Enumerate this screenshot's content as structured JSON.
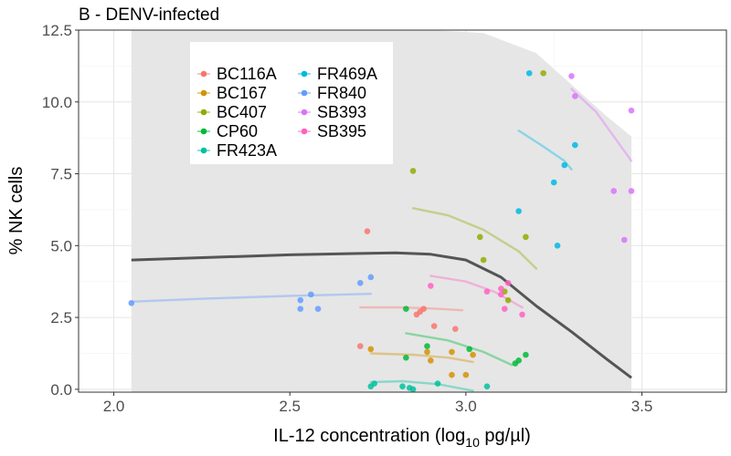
{
  "chart_data": {
    "type": "scatter",
    "title": "B - DENV-infected",
    "xlabel": {
      "prefix": "IL-12 concentration (log",
      "subscript": "10",
      "suffix": " pg/µl)"
    },
    "ylabel": "% NK cells",
    "xlim": [
      1.9,
      3.74
    ],
    "ylim": [
      -0.1,
      12.5
    ],
    "x_ticks": [
      2.0,
      2.5,
      3.0,
      3.5
    ],
    "x_tick_labels": [
      "2.0",
      "2.5",
      "3.0",
      "3.5"
    ],
    "y_ticks": [
      0,
      2.5,
      5,
      7.5,
      10,
      12.5
    ],
    "y_tick_labels": [
      "0.0",
      "2.5",
      "5.0",
      "7.5",
      "10.0",
      "12.5"
    ],
    "grid": true,
    "legend_position": "top-left",
    "series": [
      {
        "name": "BC116A",
        "color": "#F8766D",
        "points": [
          [
            2.7,
            1.5
          ],
          [
            2.72,
            5.5
          ],
          [
            2.86,
            2.6
          ],
          [
            2.87,
            2.7
          ],
          [
            2.88,
            2.8
          ],
          [
            2.91,
            2.2
          ],
          [
            2.97,
            2.1
          ]
        ],
        "fit": [
          [
            2.7,
            2.85
          ],
          [
            2.82,
            2.85
          ],
          [
            2.92,
            2.8
          ],
          [
            2.99,
            2.75
          ]
        ]
      },
      {
        "name": "BC167",
        "color": "#D39200",
        "points": [
          [
            2.73,
            1.4
          ],
          [
            2.89,
            1.3
          ],
          [
            2.9,
            1.0
          ],
          [
            2.96,
            1.3
          ],
          [
            2.96,
            0.5
          ],
          [
            3.0,
            0.5
          ],
          [
            3.02,
            1.2
          ]
        ],
        "fit": [
          [
            2.73,
            1.25
          ],
          [
            2.85,
            1.2
          ],
          [
            2.95,
            1.1
          ],
          [
            3.02,
            0.95
          ]
        ]
      },
      {
        "name": "BC407",
        "color": "#93AA00",
        "points": [
          [
            2.85,
            7.6
          ],
          [
            3.04,
            5.3
          ],
          [
            3.05,
            4.5
          ],
          [
            3.17,
            5.3
          ],
          [
            3.22,
            11.0
          ],
          [
            3.11,
            3.4
          ],
          [
            3.12,
            3.1
          ]
        ],
        "fit": [
          [
            2.85,
            6.3
          ],
          [
            2.95,
            6.05
          ],
          [
            3.05,
            5.55
          ],
          [
            3.15,
            4.8
          ],
          [
            3.2,
            4.2
          ]
        ]
      },
      {
        "name": "CP60",
        "color": "#00BA38",
        "points": [
          [
            2.83,
            2.8
          ],
          [
            2.83,
            1.1
          ],
          [
            2.89,
            1.5
          ],
          [
            3.01,
            1.4
          ],
          [
            3.14,
            0.9
          ],
          [
            3.15,
            1.0
          ],
          [
            3.17,
            1.2
          ]
        ],
        "fit": [
          [
            2.83,
            1.95
          ],
          [
            2.95,
            1.7
          ],
          [
            3.05,
            1.3
          ],
          [
            3.13,
            0.85
          ]
        ]
      },
      {
        "name": "FR423A",
        "color": "#00C19F",
        "points": [
          [
            2.73,
            0.1
          ],
          [
            2.74,
            0.2
          ],
          [
            2.82,
            0.1
          ],
          [
            2.84,
            0.05
          ],
          [
            2.85,
            0.0
          ],
          [
            2.92,
            0.2
          ],
          [
            3.06,
            0.1
          ]
        ],
        "fit": [
          [
            2.73,
            0.25
          ],
          [
            2.82,
            0.28
          ],
          [
            2.92,
            0.18
          ],
          [
            3.02,
            -0.05
          ]
        ]
      },
      {
        "name": "FR469A",
        "color": "#00B9E3",
        "points": [
          [
            3.18,
            11.0
          ],
          [
            3.26,
            5.0
          ],
          [
            3.25,
            7.2
          ],
          [
            3.28,
            7.8
          ],
          [
            3.31,
            8.5
          ],
          [
            3.15,
            6.2
          ]
        ],
        "fit": [
          [
            3.15,
            9.0
          ],
          [
            3.22,
            8.45
          ],
          [
            3.28,
            7.95
          ],
          [
            3.3,
            7.65
          ]
        ]
      },
      {
        "name": "FR840",
        "color": "#619CFF",
        "points": [
          [
            2.05,
            3.0
          ],
          [
            2.53,
            3.1
          ],
          [
            2.53,
            2.8
          ],
          [
            2.56,
            3.3
          ],
          [
            2.58,
            2.8
          ],
          [
            2.7,
            3.7
          ],
          [
            2.73,
            3.9
          ]
        ],
        "fit": [
          [
            2.05,
            3.05
          ],
          [
            2.25,
            3.15
          ],
          [
            2.5,
            3.25
          ],
          [
            2.73,
            3.32
          ]
        ]
      },
      {
        "name": "SB393",
        "color": "#DB72FB",
        "points": [
          [
            3.3,
            10.9
          ],
          [
            3.31,
            10.2
          ],
          [
            3.42,
            6.9
          ],
          [
            3.45,
            5.2
          ],
          [
            3.47,
            6.9
          ],
          [
            3.47,
            9.7
          ]
        ],
        "fit": [
          [
            3.3,
            10.45
          ],
          [
            3.37,
            9.65
          ],
          [
            3.42,
            8.8
          ],
          [
            3.47,
            7.95
          ]
        ]
      },
      {
        "name": "SB395",
        "color": "#FF61C3",
        "points": [
          [
            2.9,
            3.6
          ],
          [
            3.06,
            3.4
          ],
          [
            3.1,
            3.3
          ],
          [
            3.1,
            3.5
          ],
          [
            3.11,
            2.8
          ],
          [
            3.12,
            3.7
          ],
          [
            3.16,
            2.6
          ]
        ],
        "fit": [
          [
            2.9,
            3.95
          ],
          [
            3.0,
            3.75
          ],
          [
            3.08,
            3.4
          ],
          [
            3.16,
            2.85
          ]
        ]
      }
    ],
    "overall_fit": {
      "color": "#555555",
      "line": [
        [
          2.05,
          4.5
        ],
        [
          2.3,
          4.6
        ],
        [
          2.5,
          4.68
        ],
        [
          2.8,
          4.75
        ],
        [
          2.9,
          4.7
        ],
        [
          3.0,
          4.5
        ],
        [
          3.1,
          3.9
        ],
        [
          3.2,
          2.9
        ],
        [
          3.3,
          2.0
        ],
        [
          3.4,
          1.05
        ],
        [
          3.47,
          0.4
        ]
      ],
      "band_upper": [
        [
          2.05,
          12.5
        ],
        [
          2.55,
          12.5
        ],
        [
          2.9,
          12.5
        ],
        [
          3.05,
          12.4
        ],
        [
          3.2,
          11.7
        ],
        [
          3.3,
          10.6
        ],
        [
          3.4,
          9.5
        ],
        [
          3.47,
          8.8
        ]
      ],
      "band_lower": [
        [
          2.05,
          -0.1
        ],
        [
          3.47,
          -0.1
        ]
      ]
    }
  }
}
